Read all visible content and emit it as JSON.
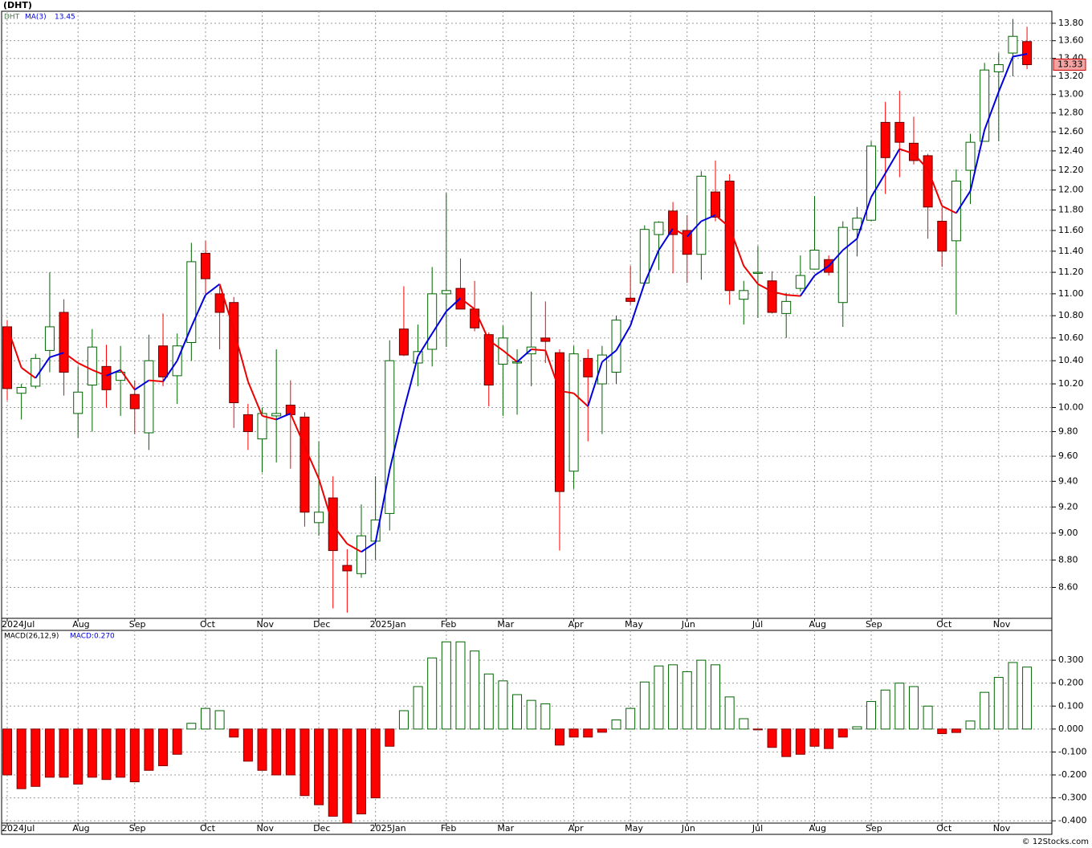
{
  "chart_data": [
    {
      "type": "candlestick",
      "title": "(DHT)",
      "symbol": "DHT",
      "log_scale": true,
      "grid": true,
      "categories": [
        "2024Jul",
        null,
        null,
        null,
        null,
        "Aug",
        null,
        null,
        null,
        "Sep",
        null,
        null,
        null,
        null,
        "Oct",
        null,
        null,
        null,
        "Nov",
        null,
        null,
        null,
        "Dec",
        null,
        null,
        null,
        "2025Jan",
        null,
        null,
        null,
        null,
        "Feb",
        null,
        null,
        null,
        "Mar",
        null,
        null,
        null,
        null,
        "Apr",
        null,
        null,
        null,
        "May",
        null,
        null,
        null,
        "Jun",
        null,
        null,
        null,
        null,
        "Jul",
        null,
        null,
        null,
        "Aug",
        null,
        null,
        null,
        "Sep",
        null,
        null,
        null,
        null,
        "Oct",
        null,
        null,
        null,
        "Nov",
        null,
        null
      ],
      "open": [
        10.7,
        10.12,
        10.18,
        10.49,
        10.83,
        9.95,
        10.19,
        10.35,
        10.23,
        10.11,
        9.79,
        10.53,
        10.27,
        10.56,
        11.38,
        11.0,
        10.92,
        9.94,
        9.74,
        9.93,
        10.02,
        9.92,
        9.08,
        9.27,
        8.76,
        8.7,
        8.94,
        9.15,
        10.68,
        10.38,
        10.5,
        11.0,
        11.05,
        10.86,
        10.63,
        10.37,
        10.38,
        10.46,
        10.6,
        10.47,
        9.48,
        10.42,
        10.2,
        10.3,
        10.96,
        11.1,
        11.56,
        11.79,
        11.6,
        11.37,
        11.98,
        12.09,
        10.95,
        11.19,
        11.12,
        10.82,
        11.05,
        11.23,
        11.32,
        10.92,
        11.61,
        11.7,
        12.7,
        12.7,
        12.48,
        12.35,
        11.69,
        11.5,
        12.2,
        12.5,
        13.25,
        13.46,
        13.59
      ],
      "high": [
        10.76,
        10.2,
        10.46,
        11.2,
        10.95,
        10.35,
        10.68,
        10.54,
        10.53,
        10.23,
        10.63,
        10.82,
        10.64,
        11.48,
        11.5,
        11.07,
        10.97,
        10.03,
        10.0,
        10.5,
        10.23,
        9.96,
        9.72,
        9.44,
        8.88,
        9.22,
        9.44,
        10.58,
        11.07,
        10.72,
        11.25,
        11.97,
        11.33,
        11.12,
        10.65,
        10.71,
        10.5,
        11.02,
        10.93,
        10.5,
        10.53,
        10.5,
        10.53,
        10.8,
        11.26,
        11.65,
        11.69,
        11.88,
        11.75,
        12.19,
        12.3,
        12.16,
        11.12,
        11.45,
        11.21,
        11.01,
        11.36,
        11.94,
        11.36,
        11.69,
        11.83,
        12.5,
        12.92,
        13.04,
        12.76,
        12.37,
        11.83,
        12.21,
        12.58,
        13.35,
        13.46,
        13.85,
        13.76
      ],
      "low": [
        10.06,
        9.9,
        10.16,
        10.3,
        10.1,
        9.75,
        9.8,
        10.0,
        9.93,
        9.78,
        9.65,
        10.18,
        10.03,
        10.4,
        11.0,
        10.5,
        9.83,
        9.65,
        9.47,
        9.55,
        9.5,
        9.05,
        8.98,
        8.45,
        8.42,
        8.67,
        8.8,
        9.02,
        10.44,
        10.18,
        10.35,
        10.52,
        10.86,
        10.66,
        10.01,
        9.93,
        9.94,
        10.18,
        10.38,
        8.87,
        9.34,
        9.72,
        9.78,
        10.2,
        10.9,
        11.08,
        11.22,
        11.19,
        11.1,
        11.13,
        11.69,
        10.9,
        10.72,
        10.78,
        10.82,
        10.6,
        11.02,
        11.23,
        11.17,
        10.7,
        11.35,
        11.69,
        11.96,
        12.13,
        12.26,
        11.52,
        11.25,
        10.81,
        11.86,
        12.5,
        12.5,
        13.2,
        13.28
      ],
      "close": [
        10.16,
        10.17,
        10.42,
        10.7,
        10.3,
        10.13,
        10.52,
        10.15,
        10.3,
        9.99,
        10.4,
        10.26,
        10.53,
        11.3,
        11.14,
        10.83,
        10.04,
        9.8,
        9.95,
        9.95,
        9.94,
        9.16,
        9.16,
        8.87,
        8.72,
        8.98,
        9.1,
        10.4,
        10.45,
        10.48,
        11.0,
        11.03,
        10.86,
        10.69,
        10.19,
        10.6,
        10.39,
        10.52,
        10.57,
        9.32,
        10.46,
        10.26,
        10.45,
        10.76,
        10.93,
        11.61,
        11.68,
        11.56,
        11.37,
        12.14,
        11.73,
        11.03,
        11.03,
        11.2,
        10.83,
        10.93,
        11.17,
        11.41,
        11.2,
        11.63,
        11.72,
        12.45,
        12.33,
        12.49,
        12.3,
        11.83,
        11.4,
        12.09,
        12.49,
        13.27,
        13.33,
        13.65,
        13.33
      ],
      "up_color": "#006400",
      "down_color": "#ff0000",
      "ma": {
        "name": "MA(3)",
        "up_color": "#0000dd",
        "down_color": "#ee0000",
        "values": [
          10.7,
          10.34,
          10.25,
          10.43,
          10.47,
          10.38,
          10.32,
          10.27,
          10.32,
          10.15,
          10.23,
          10.22,
          10.4,
          10.7,
          10.99,
          11.09,
          10.67,
          10.22,
          9.93,
          9.9,
          9.95,
          9.68,
          9.42,
          9.06,
          8.92,
          8.86,
          8.93,
          9.49,
          9.98,
          10.44,
          10.64,
          10.84,
          10.96,
          10.86,
          10.58,
          10.49,
          10.39,
          10.5,
          10.49,
          10.14,
          10.12,
          10.01,
          10.39,
          10.49,
          10.71,
          11.1,
          11.41,
          11.62,
          11.54,
          11.69,
          11.75,
          11.63,
          11.26,
          11.09,
          11.02,
          10.99,
          10.98,
          11.17,
          11.26,
          11.41,
          11.52,
          11.93,
          12.17,
          12.42,
          12.37,
          12.21,
          11.84,
          11.77,
          11.99,
          12.62,
          13.03,
          13.42,
          13.45
        ]
      },
      "ylim": [
        8.38,
        13.94
      ],
      "yticks": [
        {
          "value": 8.6,
          "label": "8.60"
        },
        {
          "value": 8.8,
          "label": "8.80"
        },
        {
          "value": 9.0,
          "label": "9.00"
        },
        {
          "value": 9.2,
          "label": "9.20"
        },
        {
          "value": 9.4,
          "label": "9.40"
        },
        {
          "value": 9.6,
          "label": "9.60"
        },
        {
          "value": 9.8,
          "label": "9.80"
        },
        {
          "value": 10.0,
          "label": "10.00"
        },
        {
          "value": 10.2,
          "label": "10.20"
        },
        {
          "value": 10.4,
          "label": "10.40"
        },
        {
          "value": 10.6,
          "label": "10.60"
        },
        {
          "value": 10.8,
          "label": "10.80"
        },
        {
          "value": 11.0,
          "label": "11.00"
        },
        {
          "value": 11.2,
          "label": "11.20"
        },
        {
          "value": 11.4,
          "label": "11.40"
        },
        {
          "value": 11.6,
          "label": "11.60"
        },
        {
          "value": 11.8,
          "label": "11.80"
        },
        {
          "value": 12.0,
          "label": "12.00"
        },
        {
          "value": 12.2,
          "label": "12.20"
        },
        {
          "value": 12.4,
          "label": "12.40"
        },
        {
          "value": 12.6,
          "label": "12.60"
        },
        {
          "value": 12.8,
          "label": "12.80"
        },
        {
          "value": 13.0,
          "label": "13.00"
        },
        {
          "value": 13.2,
          "label": "13.20"
        },
        {
          "value": 13.4,
          "label": "13.40"
        },
        {
          "value": 13.6,
          "label": "13.60"
        },
        {
          "value": 13.8,
          "label": "13.80"
        }
      ]
    },
    {
      "type": "bar",
      "title": "MACD(26,12,9)",
      "grid": true,
      "categories": [
        "2024Jul",
        null,
        null,
        null,
        null,
        "Aug",
        null,
        null,
        null,
        "Sep",
        null,
        null,
        null,
        null,
        "Oct",
        null,
        null,
        null,
        "Nov",
        null,
        null,
        null,
        "Dec",
        null,
        null,
        null,
        "2025Jan",
        null,
        null,
        null,
        null,
        "Feb",
        null,
        null,
        null,
        "Mar",
        null,
        null,
        null,
        null,
        "Apr",
        null,
        null,
        null,
        "May",
        null,
        null,
        null,
        "Jun",
        null,
        null,
        null,
        null,
        "Jul",
        null,
        null,
        null,
        "Aug",
        null,
        null,
        null,
        "Sep",
        null,
        null,
        null,
        null,
        "Oct",
        null,
        null,
        null,
        "Nov",
        null,
        null
      ],
      "series": [
        {
          "name": "MACD:0.270",
          "up_color": "#006400",
          "down_color": "#ff0000",
          "values": [
            -0.2,
            -0.26,
            -0.25,
            -0.21,
            -0.21,
            -0.24,
            -0.21,
            -0.22,
            -0.21,
            -0.23,
            -0.18,
            -0.16,
            -0.11,
            0.025,
            0.09,
            0.08,
            -0.035,
            -0.14,
            -0.18,
            -0.2,
            -0.2,
            -0.29,
            -0.33,
            -0.38,
            -0.41,
            -0.37,
            -0.3,
            -0.075,
            0.08,
            0.185,
            0.31,
            0.38,
            0.38,
            0.34,
            0.24,
            0.21,
            0.15,
            0.125,
            0.11,
            -0.07,
            -0.035,
            -0.035,
            -0.014,
            0.04,
            0.09,
            0.205,
            0.275,
            0.28,
            0.25,
            0.3,
            0.28,
            0.14,
            0.045,
            -0.003,
            -0.08,
            -0.12,
            -0.11,
            -0.075,
            -0.085,
            -0.035,
            0.01,
            0.12,
            0.17,
            0.2,
            0.185,
            0.1,
            -0.02,
            -0.015,
            0.035,
            0.16,
            0.225,
            0.29,
            0.27
          ]
        }
      ],
      "ylim": [
        -0.41,
        0.43
      ],
      "yticks": [
        {
          "value": -0.4,
          "label": "-0.400"
        },
        {
          "value": -0.3,
          "label": "-0.300"
        },
        {
          "value": -0.2,
          "label": "-0.200"
        },
        {
          "value": -0.1,
          "label": "-0.100"
        },
        {
          "value": 0,
          "label": "0.000"
        },
        {
          "value": 0.1,
          "label": "0.100"
        },
        {
          "value": 0.2,
          "label": "0.200"
        },
        {
          "value": 0.3,
          "label": "0.300"
        }
      ]
    }
  ],
  "footer": "© 12Stocks.com"
}
